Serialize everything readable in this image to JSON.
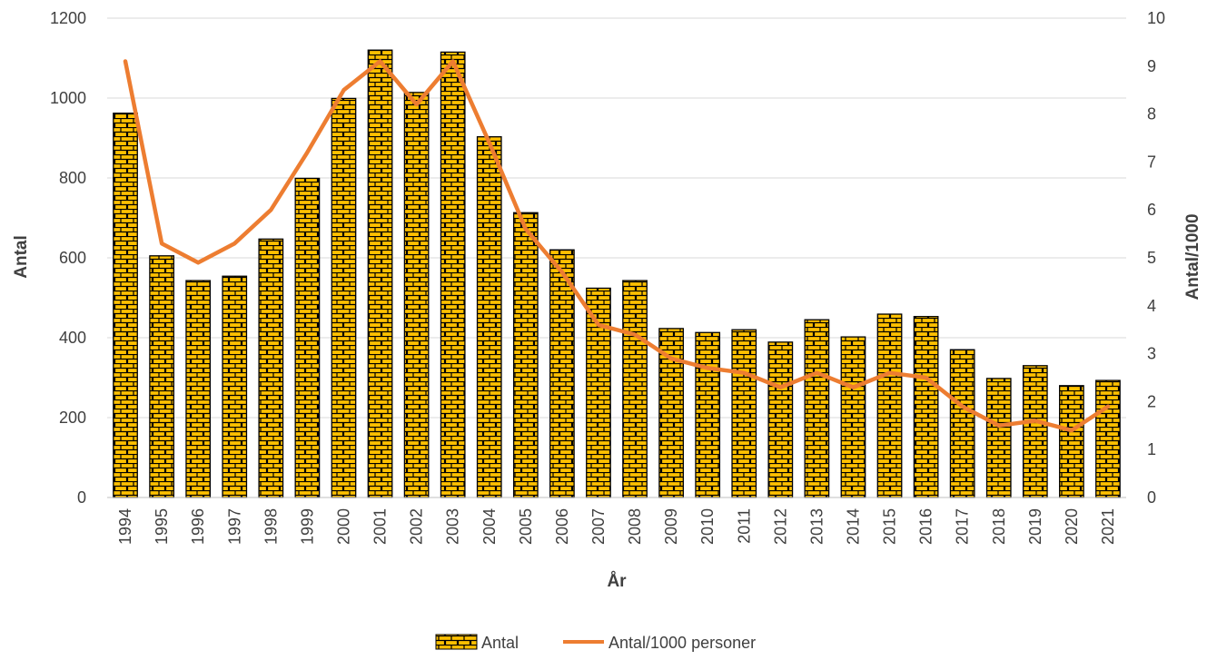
{
  "chart_data": {
    "type": "bar",
    "categories": [
      "1994",
      "1995",
      "1996",
      "1997",
      "1998",
      "1999",
      "2000",
      "2001",
      "2002",
      "2003",
      "2004",
      "2005",
      "2006",
      "2007",
      "2008",
      "2009",
      "2010",
      "2011",
      "2012",
      "2013",
      "2014",
      "2015",
      "2016",
      "2017",
      "2018",
      "2019",
      "2020",
      "2021"
    ],
    "series": [
      {
        "name": "Antal",
        "type": "bar",
        "axis": "left",
        "color": "#FFC000",
        "values": [
          962,
          605,
          543,
          554,
          647,
          799,
          999,
          1120,
          1014,
          1115,
          903,
          713,
          620,
          524,
          543,
          423,
          413,
          420,
          389,
          445,
          402,
          459,
          453,
          370,
          298,
          330,
          280,
          293
        ]
      },
      {
        "name": "Antal/1000 personer",
        "type": "line",
        "axis": "right",
        "color": "#ED7D31",
        "values": [
          9.1,
          5.3,
          4.9,
          5.3,
          6.0,
          7.2,
          8.5,
          9.1,
          8.2,
          9.1,
          7.4,
          5.6,
          4.7,
          3.6,
          3.4,
          2.9,
          2.7,
          2.6,
          2.3,
          2.6,
          2.3,
          2.6,
          2.5,
          1.9,
          1.5,
          1.6,
          1.4,
          1.9
        ]
      }
    ],
    "xlabel": "År",
    "ylabel": "Antal",
    "y2label": "Antal/1000",
    "ylim": [
      0,
      1200
    ],
    "y_ticks": [
      "0",
      "200",
      "400",
      "600",
      "800",
      "1000",
      "1200"
    ],
    "y2lim": [
      0,
      10
    ],
    "y2_ticks": [
      "0",
      "1",
      "2",
      "3",
      "4",
      "5",
      "6",
      "7",
      "8",
      "9",
      "10"
    ],
    "grid": true,
    "legend_position": "bottom"
  }
}
